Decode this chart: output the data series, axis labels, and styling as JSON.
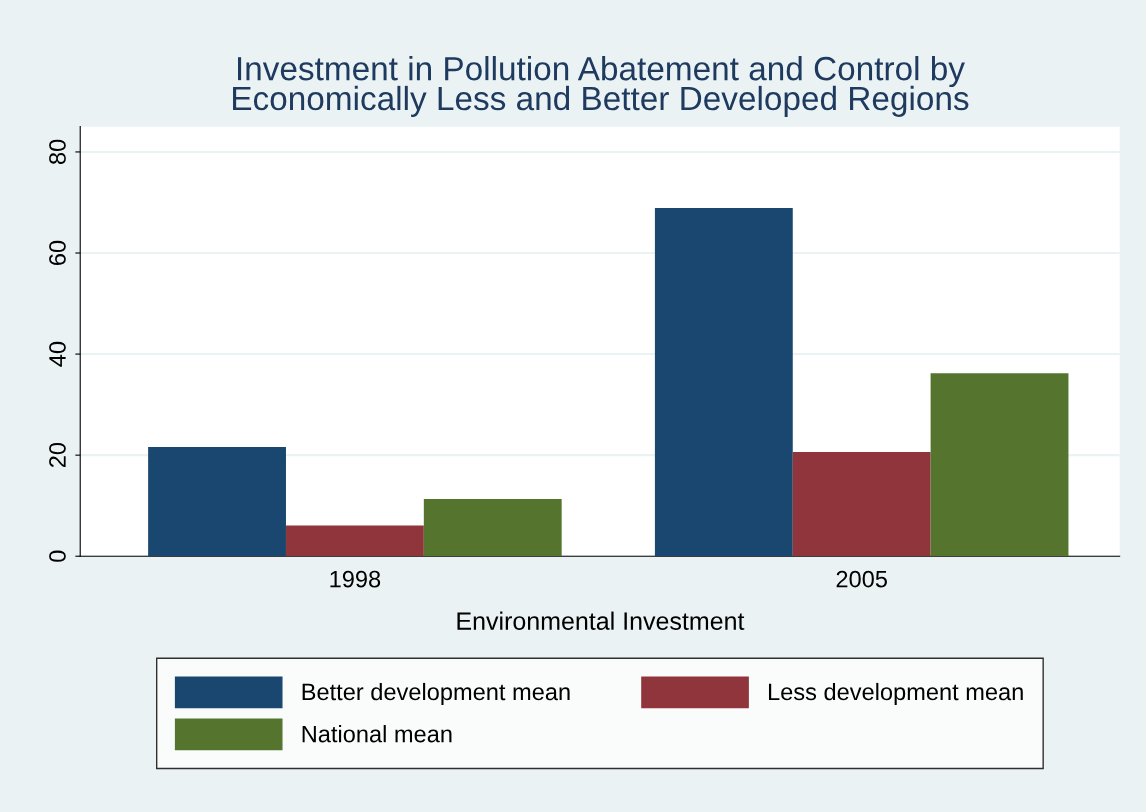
{
  "chart_data": {
    "type": "bar",
    "title": "Investment in Pollution Abatement and Control by\nEconomically Less and Better Developed Regions",
    "xlabel": "Environmental Investment",
    "categories": [
      "1998",
      "2005"
    ],
    "series": [
      {
        "name": "Better development mean",
        "color": "#1a476f",
        "values": [
          21.6,
          68.9
        ]
      },
      {
        "name": "Less development mean",
        "color": "#90353b",
        "values": [
          6.1,
          20.6
        ]
      },
      {
        "name": "National mean",
        "color": "#55752f",
        "values": [
          11.3,
          36.2
        ]
      }
    ],
    "ylim": [
      0,
      85
    ],
    "yticks": [
      0,
      20,
      40,
      60,
      80
    ],
    "grid": "y",
    "legend": "bottom"
  }
}
